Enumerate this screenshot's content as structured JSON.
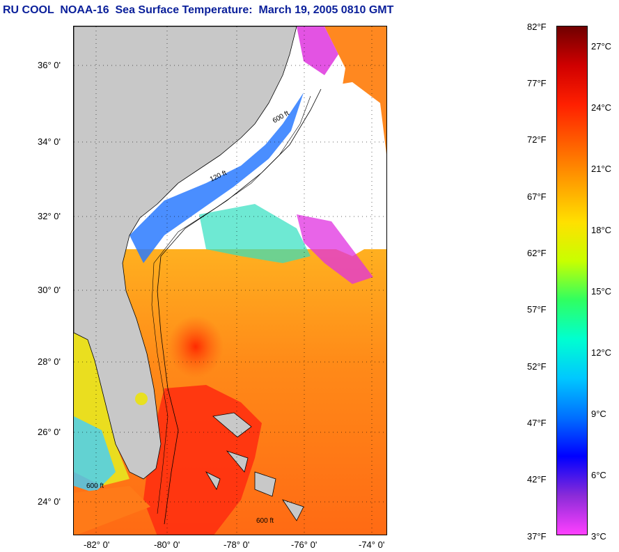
{
  "title": "RU COOL  NOAA-16  Sea Surface Temperature:  March 19, 2005 0810 GMT",
  "map": {
    "lat_labels": [
      "36° 0'",
      "34° 0'",
      "32° 0'",
      "30° 0'",
      "28° 0'",
      "26° 0'",
      "24° 0'"
    ],
    "lon_labels": [
      "-82° 0'",
      "-80° 0'",
      "-78° 0'",
      "-76° 0'",
      "-74° 0'"
    ],
    "contour_labels": [
      "120 ft",
      "600 ft",
      "600 ft",
      "600 ft"
    ],
    "colors": {
      "land": "#c8c8c8",
      "cloud": "#ffffff",
      "warm": "#ff3a10",
      "mid": "#ff8a1a",
      "cool": "#f4e81a"
    }
  },
  "colorbar": {
    "f_labels": [
      "82°F",
      "77°F",
      "72°F",
      "67°F",
      "62°F",
      "57°F",
      "52°F",
      "47°F",
      "42°F",
      "37°F"
    ],
    "c_labels": [
      "27°C",
      "24°C",
      "21°C",
      "18°C",
      "15°C",
      "12°C",
      "9°C",
      "6°C",
      "3°C"
    ],
    "range_f": [
      37,
      82
    ],
    "colors": [
      "#ff40ff",
      "#8a2bd8",
      "#0000ff",
      "#0070ff",
      "#00c8ff",
      "#00ffd0",
      "#30ff60",
      "#c8ff00",
      "#ffe000",
      "#ffa000",
      "#ff6000",
      "#ff2000",
      "#d00000",
      "#700000"
    ]
  }
}
